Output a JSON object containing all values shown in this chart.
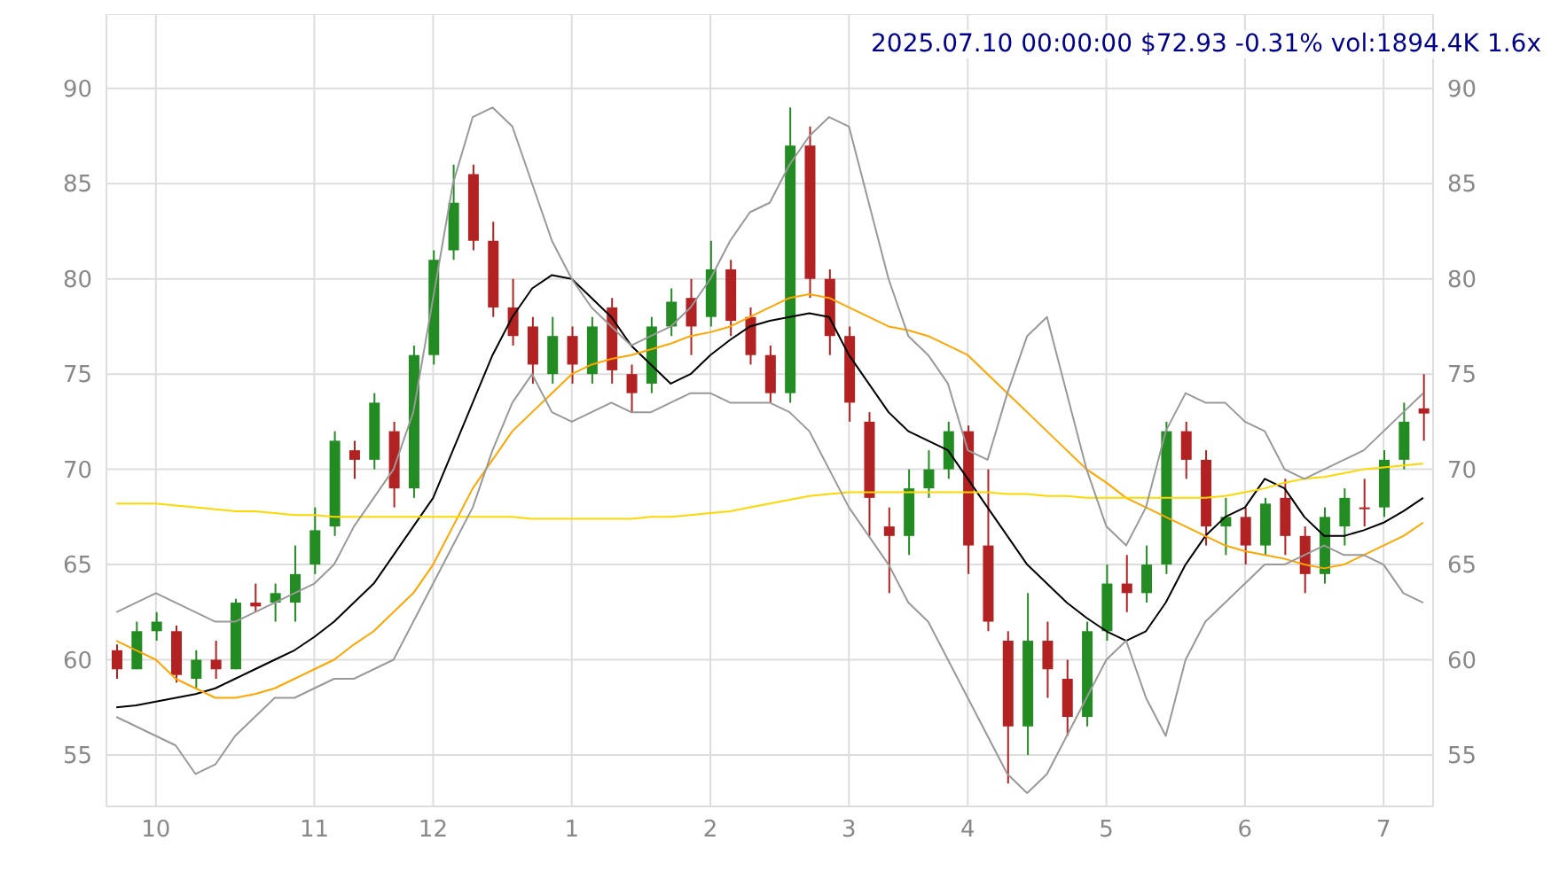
{
  "chart_data": {
    "type": "candlestick",
    "title": "2025.07.10 00:00:00 $72.93 -0.31% vol:1894.4K 1.6x",
    "categories": [
      null,
      null,
      "10",
      null,
      null,
      null,
      null,
      null,
      null,
      null,
      "11",
      null,
      null,
      null,
      null,
      null,
      "12",
      null,
      null,
      null,
      null,
      null,
      null,
      "1",
      null,
      null,
      null,
      null,
      null,
      null,
      "2",
      null,
      null,
      null,
      null,
      null,
      null,
      "3",
      null,
      null,
      null,
      null,
      null,
      "4",
      null,
      null,
      null,
      null,
      null,
      null,
      "5",
      null,
      null,
      null,
      null,
      null,
      null,
      "6",
      null,
      null,
      null,
      null,
      null,
      null,
      "7",
      null,
      null
    ],
    "ohlc": [
      [
        60.5,
        60.8,
        59,
        59.5
      ],
      [
        59.5,
        62,
        59.5,
        61.5
      ],
      [
        61.5,
        62.5,
        61,
        62
      ],
      [
        61.5,
        61.8,
        58.8,
        59.2
      ],
      [
        59,
        60.5,
        58.5,
        60
      ],
      [
        60,
        61,
        59,
        59.5
      ],
      [
        59.5,
        63.2,
        59.5,
        63
      ],
      [
        63,
        64,
        62.5,
        62.8
      ],
      [
        63,
        64,
        62,
        63.5
      ],
      [
        63,
        66,
        62,
        64.5
      ],
      [
        65,
        68,
        64.5,
        66.8
      ],
      [
        67,
        72,
        66.5,
        71.5
      ],
      [
        71,
        71.5,
        69.5,
        70.5
      ],
      [
        70.5,
        74,
        70,
        73.5
      ],
      [
        72,
        72.5,
        68,
        69
      ],
      [
        69,
        76.5,
        68.5,
        76
      ],
      [
        76,
        81.5,
        75.5,
        81
      ],
      [
        81.5,
        86,
        81,
        84
      ],
      [
        85.5,
        86,
        81.5,
        82
      ],
      [
        82,
        83,
        78,
        78.5
      ],
      [
        78.5,
        80,
        76.5,
        77
      ],
      [
        77.5,
        78,
        74.5,
        75.5
      ],
      [
        75,
        78,
        74.5,
        77
      ],
      [
        77,
        77.5,
        74.5,
        75.5
      ],
      [
        75,
        78,
        74.5,
        77.5
      ],
      [
        78.5,
        79,
        74.5,
        75.2
      ],
      [
        75,
        75.5,
        73,
        74
      ],
      [
        74.5,
        78,
        74,
        77.5
      ],
      [
        77.5,
        79.5,
        77,
        78.8
      ],
      [
        79,
        80,
        76,
        77.5
      ],
      [
        78,
        82,
        77.5,
        80.5
      ],
      [
        80.5,
        81,
        77,
        77.8
      ],
      [
        78,
        78.5,
        75.5,
        76
      ],
      [
        76,
        76.5,
        73.5,
        74
      ],
      [
        74,
        89,
        73.5,
        87
      ],
      [
        87,
        88,
        79,
        80
      ],
      [
        80,
        80.5,
        76,
        77
      ],
      [
        77,
        77.5,
        72.5,
        73.5
      ],
      [
        72.5,
        73,
        66.5,
        68.5
      ],
      [
        67,
        68,
        63.5,
        66.5
      ],
      [
        66.5,
        70,
        65.5,
        69
      ],
      [
        69,
        71,
        68.5,
        70
      ],
      [
        70,
        72.5,
        69.5,
        72
      ],
      [
        72,
        72.3,
        64.5,
        66
      ],
      [
        66,
        70,
        61.5,
        62
      ],
      [
        61,
        61.5,
        53.5,
        56.5
      ],
      [
        56.5,
        63.5,
        55,
        61
      ],
      [
        61,
        62,
        58,
        59.5
      ],
      [
        59,
        60,
        56,
        57
      ],
      [
        57,
        62,
        56.5,
        61.5
      ],
      [
        61.5,
        65,
        61,
        64
      ],
      [
        64,
        65.5,
        62.5,
        63.5
      ],
      [
        63.5,
        66,
        63,
        65
      ],
      [
        65,
        72.5,
        64.5,
        72
      ],
      [
        72,
        72.5,
        69.5,
        70.5
      ],
      [
        70.5,
        71,
        66,
        67
      ],
      [
        67,
        68.5,
        65.5,
        67.5
      ],
      [
        67.5,
        68,
        65,
        66
      ],
      [
        66,
        68.5,
        65.5,
        68.2
      ],
      [
        68.5,
        69.5,
        65.5,
        66.5
      ],
      [
        66.5,
        67,
        63.5,
        64.5
      ],
      [
        64.5,
        68,
        64,
        67.5
      ],
      [
        67,
        69,
        66,
        68.5
      ],
      [
        68,
        69.5,
        67,
        68
      ],
      [
        68,
        71,
        67.5,
        70.5
      ],
      [
        70.5,
        73.5,
        70,
        72.5
      ],
      [
        73.2,
        75,
        71.5,
        72.93
      ]
    ],
    "colors": [
      "#b22222",
      "#228b22",
      "#228b22",
      "#b22222",
      "#228b22",
      "#b22222",
      "#228b22",
      "#b22222",
      "#228b22",
      "#228b22",
      "#228b22",
      "#228b22",
      "#b22222",
      "#228b22",
      "#b22222",
      "#228b22",
      "#228b22",
      "#228b22",
      "#b22222",
      "#b22222",
      "#b22222",
      "#b22222",
      "#228b22",
      "#b22222",
      "#228b22",
      "#b22222",
      "#b22222",
      "#228b22",
      "#228b22",
      "#b22222",
      "#228b22",
      "#b22222",
      "#b22222",
      "#b22222",
      "#228b22",
      "#b22222",
      "#b22222",
      "#b22222",
      "#b22222",
      "#b22222",
      "#228b22",
      "#228b22",
      "#228b22",
      "#b22222",
      "#b22222",
      "#b22222",
      "#228b22",
      "#b22222",
      "#b22222",
      "#228b22",
      "#228b22",
      "#b22222",
      "#228b22",
      "#228b22",
      "#b22222",
      "#b22222",
      "#228b22",
      "#b22222",
      "#228b22",
      "#b22222",
      "#b22222",
      "#228b22",
      "#228b22",
      "#b22222",
      "#228b22",
      "#228b22",
      "#b22222"
    ],
    "series": [
      {
        "type": "line",
        "color": "#000000",
        "values": [
          57.5,
          57.6,
          57.8,
          58,
          58.2,
          58.5,
          59,
          59.5,
          60,
          60.5,
          61.2,
          62,
          63,
          64,
          65.5,
          67,
          68.5,
          71,
          73.5,
          76,
          78,
          79.5,
          80.2,
          80,
          79,
          78,
          76.5,
          75.5,
          74.5,
          75,
          76,
          76.8,
          77.5,
          77.8,
          78,
          78.2,
          78,
          76,
          74.5,
          73,
          72,
          71.5,
          71,
          69.5,
          68,
          66.5,
          65,
          64,
          63,
          62.2,
          61.5,
          61,
          61.5,
          63,
          65,
          66.5,
          67.5,
          68,
          69.5,
          69,
          67.5,
          66.5,
          66.5,
          66.8,
          67.2,
          67.8,
          68.5
        ]
      },
      {
        "type": "line",
        "color": "#ffa500",
        "values": [
          61,
          60.5,
          60,
          59,
          58.5,
          58,
          58,
          58.2,
          58.5,
          59,
          59.5,
          60,
          60.8,
          61.5,
          62.5,
          63.5,
          65,
          67,
          69,
          70.5,
          72,
          73,
          74,
          75,
          75.5,
          75.8,
          76,
          76.3,
          76.6,
          77,
          77.2,
          77.5,
          78,
          78.5,
          79,
          79.2,
          79,
          78.5,
          78,
          77.5,
          77.3,
          77,
          76.5,
          76,
          75,
          74,
          73,
          72,
          71,
          70,
          69.3,
          68.5,
          68,
          67.5,
          67,
          66.5,
          66,
          65.7,
          65.5,
          65.3,
          65,
          64.8,
          65,
          65.5,
          66,
          66.5,
          67.2
        ]
      },
      {
        "type": "line",
        "color": "#ffd700",
        "values": [
          68.2,
          68.2,
          68.2,
          68.1,
          68,
          67.9,
          67.8,
          67.8,
          67.7,
          67.6,
          67.6,
          67.5,
          67.5,
          67.5,
          67.5,
          67.5,
          67.5,
          67.5,
          67.5,
          67.5,
          67.5,
          67.4,
          67.4,
          67.4,
          67.4,
          67.4,
          67.4,
          67.5,
          67.5,
          67.6,
          67.7,
          67.8,
          68,
          68.2,
          68.4,
          68.6,
          68.7,
          68.8,
          68.8,
          68.8,
          68.8,
          68.8,
          68.8,
          68.8,
          68.8,
          68.7,
          68.7,
          68.6,
          68.6,
          68.5,
          68.5,
          68.5,
          68.5,
          68.5,
          68.5,
          68.5,
          68.6,
          68.8,
          69,
          69.3,
          69.5,
          69.6,
          69.8,
          70,
          70.1,
          70.2,
          70.3
        ]
      },
      {
        "type": "line",
        "color": "#999999",
        "values": [
          62.5,
          63,
          63.5,
          63,
          62.5,
          62,
          62,
          62.5,
          63,
          63.5,
          64,
          65,
          67,
          68.5,
          70,
          73,
          79,
          85,
          88.5,
          89,
          88,
          85,
          82,
          80,
          78.5,
          77.5,
          76.5,
          77,
          77.5,
          78.5,
          80,
          82,
          83.5,
          84,
          86,
          87.5,
          88.5,
          88,
          84,
          80,
          77,
          76,
          74.5,
          71,
          70.5,
          74,
          77,
          78,
          74,
          70,
          67,
          66,
          68,
          72,
          74,
          73.5,
          73.5,
          72.5,
          72,
          70,
          69.5,
          70,
          70.5,
          71,
          72,
          73,
          74
        ]
      },
      {
        "type": "line",
        "color": "#999999",
        "values": [
          57,
          56.5,
          56,
          55.5,
          54,
          54.5,
          56,
          57,
          58,
          58,
          58.5,
          59,
          59,
          59.5,
          60,
          62,
          64,
          66,
          68,
          71,
          73.5,
          75,
          73,
          72.5,
          73,
          73.5,
          73,
          73,
          73.5,
          74,
          74,
          73.5,
          73.5,
          73.5,
          73,
          72,
          70,
          68,
          66.5,
          65,
          63,
          62,
          60,
          58,
          56,
          54,
          53,
          54,
          56,
          58,
          60,
          61,
          58,
          56,
          60,
          62,
          63,
          64,
          65,
          65,
          65.5,
          66,
          65.5,
          65.5,
          65,
          63.5,
          63
        ]
      }
    ],
    "ylim": [
      52.3,
      93.9
    ],
    "yticks": [
      55,
      60,
      65,
      70,
      75,
      80,
      85,
      90
    ],
    "y2lim": [
      52.3,
      93.9
    ],
    "y2ticks": [
      55,
      60,
      65,
      70,
      75,
      80,
      85,
      90
    ],
    "grid": true
  }
}
